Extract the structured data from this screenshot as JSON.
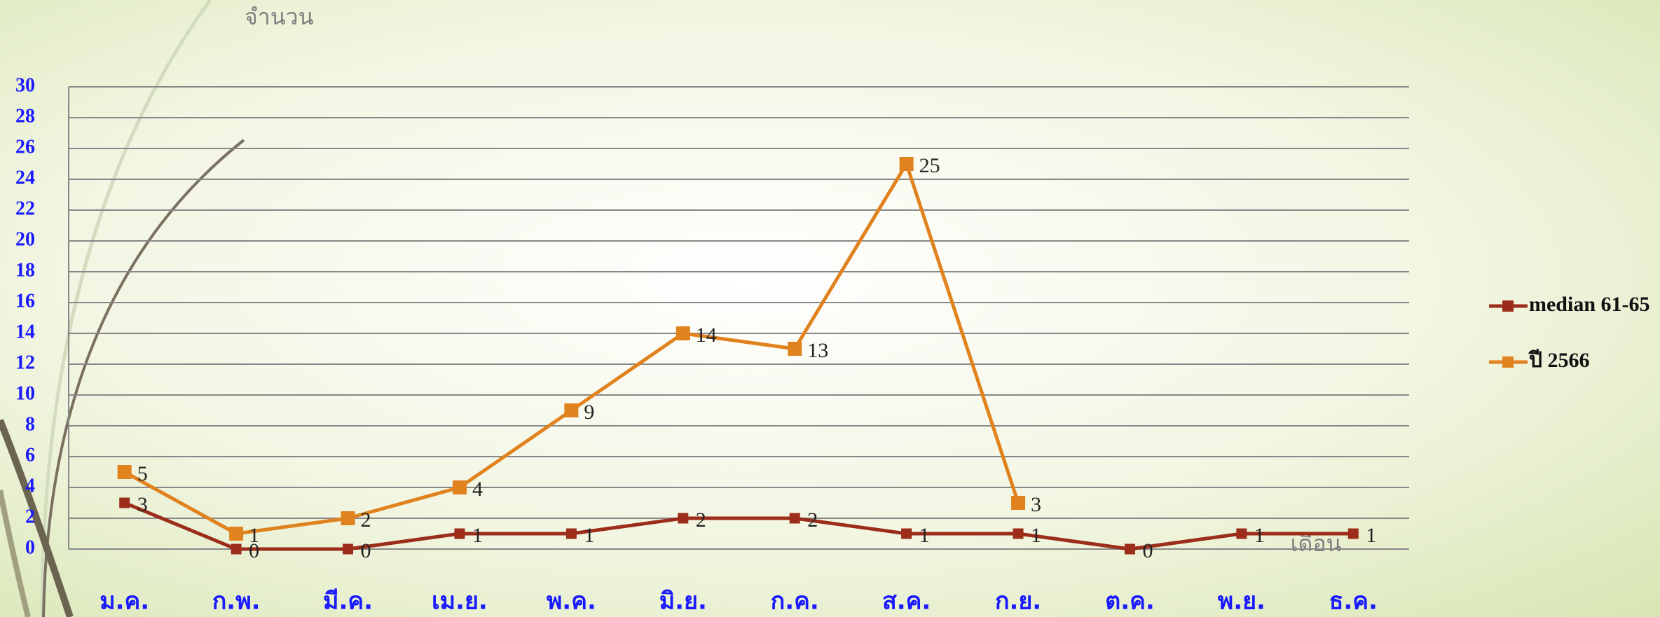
{
  "chart_data": {
    "type": "line",
    "y_label": "จำนวน",
    "x_label": "เดือน",
    "categories": [
      "ม.ค.",
      "ก.พ.",
      "มี.ค.",
      "เม.ย.",
      "พ.ค.",
      "มิ.ย.",
      "ก.ค.",
      "ส.ค.",
      "ก.ย.",
      "ต.ค.",
      "พ.ย.",
      "ธ.ค."
    ],
    "series": [
      {
        "name": "median 61-65",
        "color": "#9b2d1a",
        "values": [
          3,
          0,
          0,
          1,
          1,
          2,
          2,
          1,
          1,
          0,
          1,
          1
        ]
      },
      {
        "name": "ปี 2566",
        "color": "#e0821e",
        "values": [
          5,
          1,
          2,
          4,
          9,
          14,
          13,
          25,
          3,
          null,
          null,
          null
        ]
      }
    ],
    "ylim": [
      0,
      30
    ],
    "yticks": [
      0,
      2,
      4,
      6,
      8,
      10,
      12,
      14,
      16,
      18,
      20,
      22,
      24,
      26,
      28,
      30
    ],
    "grid": true,
    "legend": "right"
  }
}
